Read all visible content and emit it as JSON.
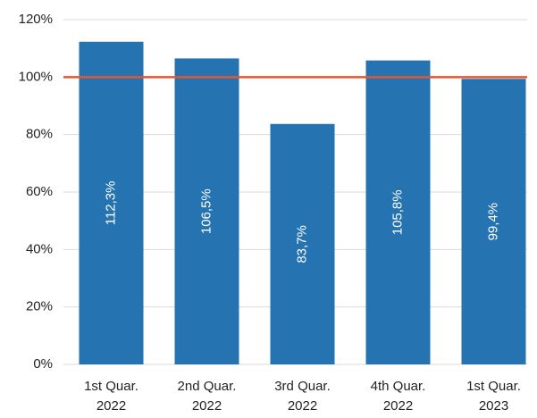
{
  "chart_data": {
    "type": "bar",
    "categories": [
      "1st Quar.\n2022",
      "2nd Quar.\n2022",
      "3rd Quar.\n2022",
      "4th Quar.\n2022",
      "1st Quar.\n2023"
    ],
    "values": [
      112.3,
      106.5,
      83.7,
      105.8,
      99.4
    ],
    "value_labels": [
      "112,3%",
      "106,5%",
      "83,7%",
      "105,8%",
      "99,4%"
    ],
    "color": "#2673b2",
    "ylim": [
      0,
      120
    ],
    "yticks": [
      {
        "value": 0,
        "label": "0%"
      },
      {
        "value": 20,
        "label": "20%"
      },
      {
        "value": 40,
        "label": "40%"
      },
      {
        "value": 60,
        "label": "60%"
      },
      {
        "value": 80,
        "label": "80%"
      },
      {
        "value": 100,
        "label": "100%"
      },
      {
        "value": 120,
        "label": "120%"
      }
    ],
    "grid": true,
    "reference_line": {
      "value": 100,
      "color": "#e4572e"
    }
  }
}
